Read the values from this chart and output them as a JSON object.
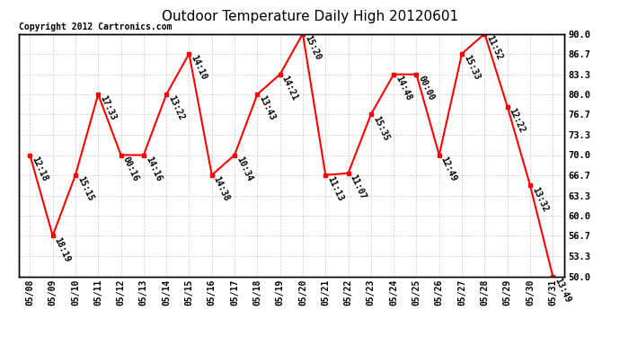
{
  "title": "Outdoor Temperature Daily High 20120601",
  "copyright": "Copyright 2012 Cartronics.com",
  "dates": [
    "05/08",
    "05/09",
    "05/10",
    "05/11",
    "05/12",
    "05/13",
    "05/14",
    "05/15",
    "05/16",
    "05/17",
    "05/18",
    "05/19",
    "05/20",
    "05/21",
    "05/22",
    "05/23",
    "05/24",
    "05/25",
    "05/26",
    "05/27",
    "05/28",
    "05/29",
    "05/30",
    "05/31"
  ],
  "values": [
    70.0,
    56.7,
    66.7,
    80.0,
    70.0,
    70.0,
    80.0,
    86.7,
    66.7,
    70.0,
    80.0,
    83.3,
    90.0,
    66.7,
    67.0,
    76.7,
    83.3,
    83.3,
    70.0,
    86.7,
    90.0,
    78.0,
    65.0,
    50.0
  ],
  "labels": [
    "12:18",
    "18:19",
    "15:15",
    "17:33",
    "00:16",
    "14:16",
    "13:22",
    "14:10",
    "14:38",
    "10:34",
    "13:43",
    "14:21",
    "15:20",
    "11:13",
    "11:07",
    "15:35",
    "14:48",
    "00:00",
    "12:49",
    "15:33",
    "11:52",
    "12:22",
    "13:32",
    "13:49"
  ],
  "ylim": [
    50.0,
    90.0
  ],
  "yticks": [
    50.0,
    53.3,
    56.7,
    60.0,
    63.3,
    66.7,
    70.0,
    73.3,
    76.7,
    80.0,
    83.3,
    86.7,
    90.0
  ],
  "line_color": "red",
  "marker_color": "red",
  "bg_color": "#ffffff",
  "grid_color": "#cccccc",
  "title_fontsize": 11,
  "label_fontsize": 7
}
